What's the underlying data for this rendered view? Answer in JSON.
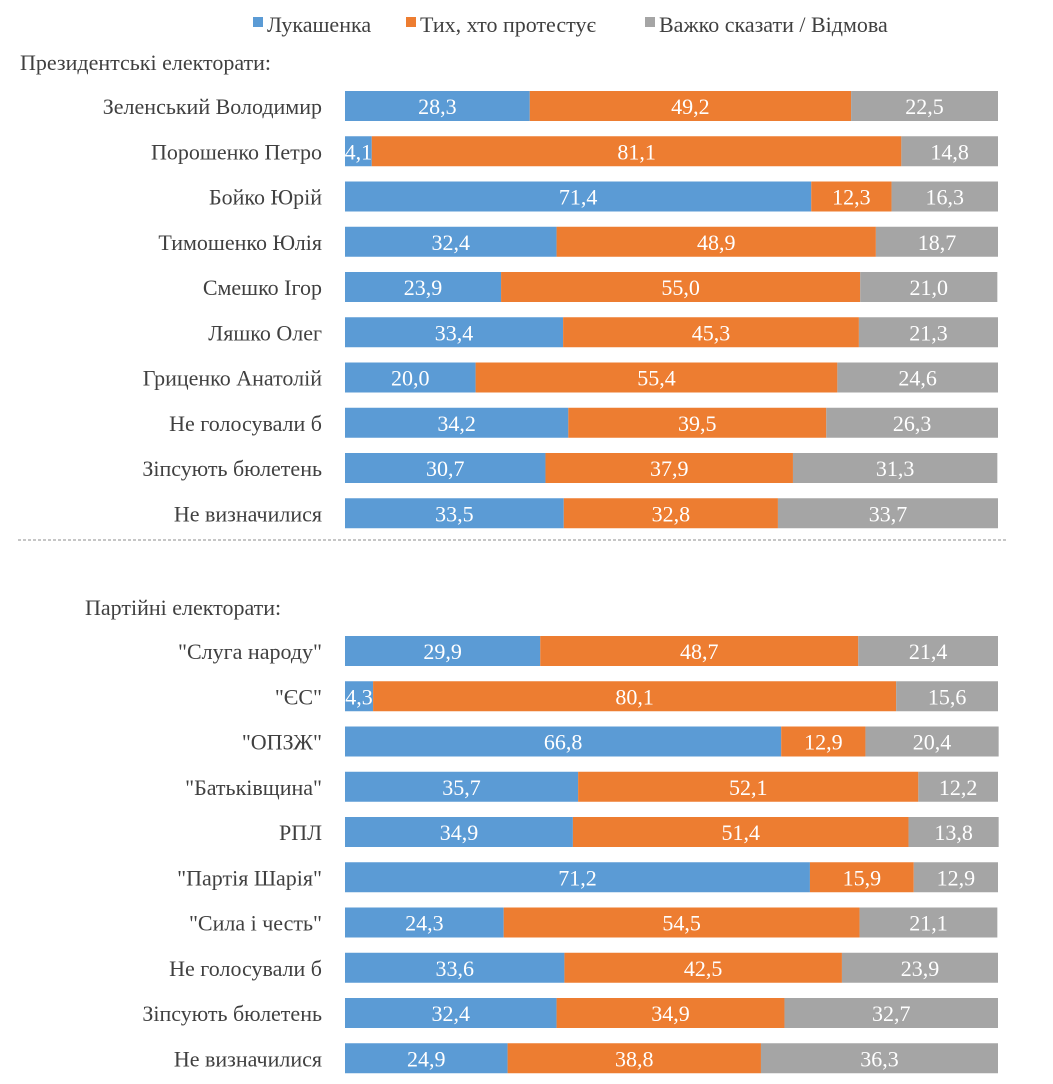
{
  "chart_data": {
    "type": "bar",
    "orientation": "horizontal",
    "stacked": true,
    "xlim": [
      0,
      100
    ],
    "grid": false,
    "legend_position": "top",
    "series": [
      {
        "name": "Лукашенка",
        "color": "#5B9BD5"
      },
      {
        "name": "Тих, хто протестує",
        "color": "#ED7D31"
      },
      {
        "name": "Важко сказати / Відмова",
        "color": "#A5A5A5"
      }
    ],
    "groups": [
      {
        "title": "Президентські електорати:",
        "categories": [
          "Зеленський Володимир",
          "Порошенко Петро",
          "Бойко Юрій",
          "Тимошенко Юлія",
          "Смешко Ігор",
          "Ляшко Олег",
          "Гриценко Анатолій",
          "Не голосували б",
          "Зіпсують бюлетень",
          "Не визначилися"
        ],
        "values": [
          [
            28.3,
            49.2,
            22.5
          ],
          [
            4.1,
            81.1,
            14.8
          ],
          [
            71.4,
            12.3,
            16.3
          ],
          [
            32.4,
            48.9,
            18.7
          ],
          [
            23.9,
            55.0,
            21.0
          ],
          [
            33.4,
            45.3,
            21.3
          ],
          [
            20.0,
            55.4,
            24.6
          ],
          [
            34.2,
            39.5,
            26.3
          ],
          [
            30.7,
            37.9,
            31.3
          ],
          [
            33.5,
            32.8,
            33.7
          ]
        ]
      },
      {
        "title": "Партійні електорати:",
        "categories": [
          "\"Слуга народу\"",
          "\"ЄС\"",
          "\"ОПЗЖ\"",
          "\"Батьківщина\"",
          "РПЛ",
          "\"Партія Шарія\"",
          "\"Сила і честь\"",
          "Не голосували б",
          "Зіпсують бюлетень",
          "Не визначилися"
        ],
        "values": [
          [
            29.9,
            48.7,
            21.4
          ],
          [
            4.3,
            80.1,
            15.6
          ],
          [
            66.8,
            12.9,
            20.4
          ],
          [
            35.7,
            52.1,
            12.2
          ],
          [
            34.9,
            51.4,
            13.8
          ],
          [
            71.2,
            15.9,
            12.9
          ],
          [
            24.3,
            54.5,
            21.1
          ],
          [
            33.6,
            42.5,
            23.9
          ],
          [
            32.4,
            34.9,
            32.7
          ],
          [
            24.9,
            38.8,
            36.3
          ]
        ]
      }
    ]
  }
}
